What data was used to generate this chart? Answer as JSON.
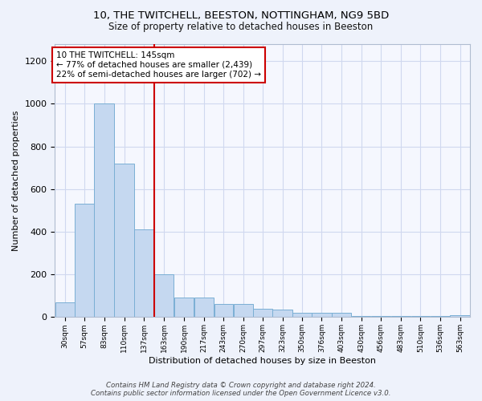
{
  "title1": "10, THE TWITCHELL, BEESTON, NOTTINGHAM, NG9 5BD",
  "title2": "Size of property relative to detached houses in Beeston",
  "xlabel": "Distribution of detached houses by size in Beeston",
  "ylabel": "Number of detached properties",
  "bin_labels": [
    "30sqm",
    "57sqm",
    "83sqm",
    "110sqm",
    "137sqm",
    "163sqm",
    "190sqm",
    "217sqm",
    "243sqm",
    "270sqm",
    "297sqm",
    "323sqm",
    "350sqm",
    "376sqm",
    "403sqm",
    "430sqm",
    "456sqm",
    "483sqm",
    "510sqm",
    "536sqm",
    "563sqm"
  ],
  "bin_edges": [
    16,
    43,
    69,
    96,
    123,
    150,
    177,
    204,
    231,
    257,
    284,
    310,
    337,
    363,
    390,
    417,
    443,
    470,
    497,
    523,
    550,
    577
  ],
  "bar_heights": [
    70,
    530,
    1000,
    720,
    410,
    200,
    90,
    90,
    60,
    60,
    40,
    35,
    20,
    20,
    20,
    5,
    5,
    5,
    5,
    5,
    10
  ],
  "bar_color": "#c5d8f0",
  "bar_edgecolor": "#7aafd4",
  "vline_x": 145,
  "vline_color": "#cc0000",
  "annotation_text": "10 THE TWITCHELL: 145sqm\n← 77% of detached houses are smaller (2,439)\n22% of semi-detached houses are larger (702) →",
  "annotation_box_edgecolor": "#cc0000",
  "ylim": [
    0,
    1280
  ],
  "yticks": [
    0,
    200,
    400,
    600,
    800,
    1000,
    1200
  ],
  "footer_text": "Contains HM Land Registry data © Crown copyright and database right 2024.\nContains public sector information licensed under the Open Government Licence v3.0.",
  "bg_color": "#eef2fb",
  "plot_bg_color": "#f5f7fe",
  "grid_color": "#d0d8ef"
}
